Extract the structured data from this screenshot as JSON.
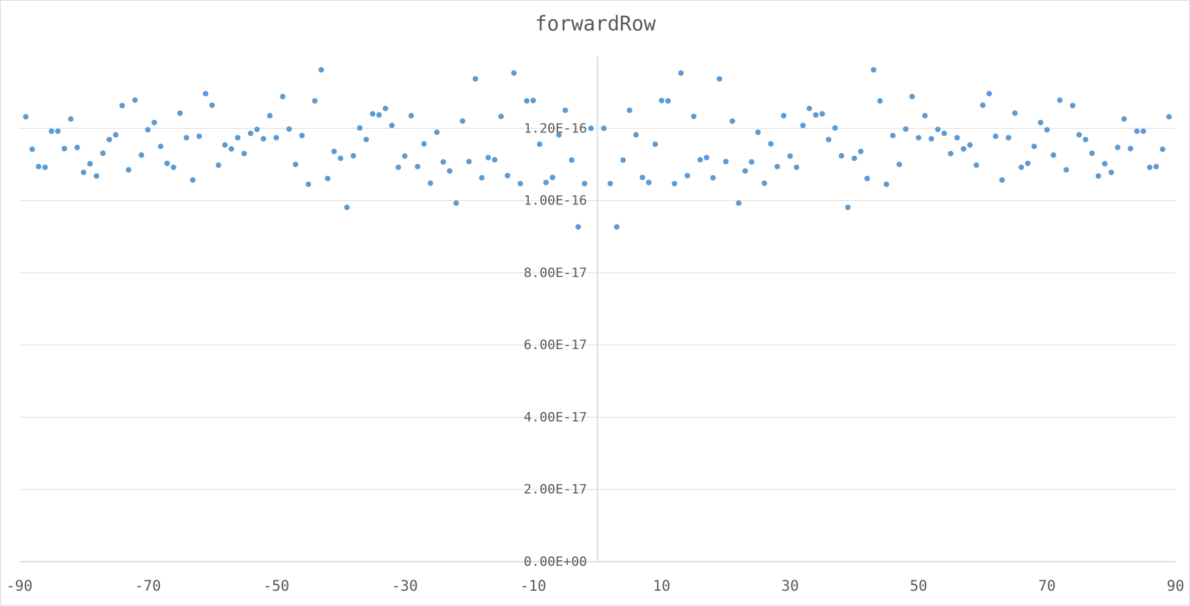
{
  "chart_data": {
    "type": "scatter",
    "title": "forwardRow",
    "xlabel": "",
    "ylabel": "",
    "xlim": [
      -90,
      90
    ],
    "ylim": [
      0,
      1.4e-16
    ],
    "x_ticks": [
      -90,
      -70,
      -50,
      -30,
      -10,
      10,
      30,
      50,
      70,
      90
    ],
    "x_tick_labels": [
      "-90",
      "-70",
      "-50",
      "-30",
      "-10",
      "10",
      "30",
      "50",
      "70",
      "90"
    ],
    "y_ticks": [
      0,
      2e-17,
      4e-17,
      6e-17,
      8e-17,
      1e-16,
      1.2e-16
    ],
    "y_tick_labels": [
      "0.00E+00",
      "2.00E-17",
      "4.00E-17",
      "6.00E-17",
      "8.00E-17",
      "1.00E-16",
      "1.20E-16"
    ],
    "y_axis_at_x": 0,
    "grid": "horizontal",
    "marker_color": "#5b9bd5",
    "series": [
      {
        "x": [
          -89,
          -88,
          -87,
          -86,
          -85,
          -84,
          -83,
          -82,
          -81,
          -80,
          -79,
          -78,
          -77,
          -76,
          -75,
          -74,
          -73,
          -72,
          -71,
          -70,
          -69,
          -68,
          -67,
          -66,
          -65,
          -64,
          -63,
          -62,
          -61,
          -60,
          -59,
          -58,
          -57,
          -56,
          -55,
          -54,
          -53,
          -52,
          -51,
          -50,
          -49,
          -48,
          -47,
          -46,
          -45,
          -44,
          -43,
          -42,
          -41,
          -40,
          -39,
          -38,
          -37,
          -36,
          -35,
          -34,
          -33,
          -32,
          -31,
          -30,
          -29,
          -28,
          -27,
          -26,
          -25,
          -24,
          -23,
          -22,
          -21,
          -20,
          -19,
          -18,
          -17,
          -16,
          -15,
          -14,
          -13,
          -12,
          -11,
          -10,
          -9,
          -8,
          -7,
          -6,
          -5,
          -4,
          -3,
          -2,
          -1,
          1,
          2,
          3,
          4,
          5,
          6,
          7,
          8,
          9,
          10,
          11,
          12,
          13,
          14,
          15,
          16,
          17,
          18,
          19,
          20,
          21,
          22,
          23,
          24,
          25,
          26,
          27,
          28,
          29,
          30,
          31,
          32,
          33,
          34,
          35,
          36,
          37,
          38,
          39,
          40,
          41,
          42,
          43,
          44,
          45,
          46,
          47,
          48,
          49,
          50,
          51,
          52,
          53,
          54,
          55,
          56,
          57,
          58,
          59,
          60,
          61,
          62,
          63,
          64,
          65,
          66,
          67,
          68,
          69,
          70,
          71,
          72,
          73,
          74,
          75,
          76,
          77,
          78,
          79,
          80,
          81,
          82,
          83,
          84,
          85,
          86,
          87,
          88,
          89
        ],
        "y": [
          1.232e-16,
          1.142e-16,
          1.094e-16,
          1.092e-16,
          1.192e-16,
          1.192e-16,
          1.144e-16,
          1.226e-16,
          1.147e-16,
          1.078e-16,
          1.102e-16,
          1.068e-16,
          1.131e-16,
          1.169e-16,
          1.182e-16,
          1.263e-16,
          1.085e-16,
          1.278e-16,
          1.126e-16,
          1.196e-16,
          1.216e-16,
          1.15e-16,
          1.103e-16,
          1.092e-16,
          1.242e-16,
          1.174e-16,
          1.057e-16,
          1.178e-16,
          1.296e-16,
          1.264e-16,
          1.098e-16,
          1.154e-16,
          1.143e-16,
          1.174e-16,
          1.13e-16,
          1.186e-16,
          1.197e-16,
          1.171e-16,
          1.235e-16,
          1.174e-16,
          1.288e-16,
          1.198e-16,
          1.1e-16,
          1.18e-16,
          1.045e-16,
          1.276e-16,
          1.362e-16,
          1.061e-16,
          1.136e-16,
          1.117e-16,
          9.81e-17,
          1.124e-16,
          1.201e-16,
          1.169e-16,
          1.24e-16,
          1.237e-16,
          1.255e-16,
          1.208e-16,
          1.092e-16,
          1.123e-16,
          1.235e-16,
          1.094e-16,
          1.157e-16,
          1.048e-16,
          1.189e-16,
          1.107e-16,
          1.082e-16,
          9.93e-17,
          1.22e-16,
          1.108e-16,
          1.337e-16,
          1.063e-16,
          1.119e-16,
          1.113e-16,
          1.233e-16,
          1.069e-16,
          1.353e-16,
          1.047e-16,
          1.276e-16,
          1.277e-16,
          1.156e-16,
          1.05e-16,
          1.064e-16,
          1.182e-16,
          1.25e-16,
          1.112e-16,
          9.27e-17,
          1.047e-16,
          1.2e-16,
          1.2e-16,
          1.047e-16,
          9.27e-17,
          1.112e-16,
          1.25e-16,
          1.182e-16,
          1.064e-16,
          1.05e-16,
          1.156e-16,
          1.277e-16,
          1.276e-16,
          1.047e-16,
          1.353e-16,
          1.069e-16,
          1.233e-16,
          1.113e-16,
          1.119e-16,
          1.063e-16,
          1.337e-16,
          1.108e-16,
          1.22e-16,
          9.93e-17,
          1.082e-16,
          1.107e-16,
          1.189e-16,
          1.048e-16,
          1.157e-16,
          1.094e-16,
          1.235e-16,
          1.123e-16,
          1.092e-16,
          1.208e-16,
          1.255e-16,
          1.237e-16,
          1.24e-16,
          1.169e-16,
          1.201e-16,
          1.124e-16,
          9.81e-17,
          1.117e-16,
          1.136e-16,
          1.061e-16,
          1.362e-16,
          1.276e-16,
          1.045e-16,
          1.18e-16,
          1.1e-16,
          1.198e-16,
          1.288e-16,
          1.174e-16,
          1.235e-16,
          1.171e-16,
          1.197e-16,
          1.186e-16,
          1.13e-16,
          1.174e-16,
          1.143e-16,
          1.154e-16,
          1.098e-16,
          1.264e-16,
          1.296e-16,
          1.178e-16,
          1.057e-16,
          1.174e-16,
          1.242e-16,
          1.092e-16,
          1.103e-16,
          1.15e-16,
          1.216e-16,
          1.196e-16,
          1.126e-16,
          1.278e-16,
          1.085e-16,
          1.263e-16,
          1.182e-16,
          1.169e-16,
          1.131e-16,
          1.068e-16,
          1.102e-16,
          1.078e-16,
          1.147e-16,
          1.226e-16,
          1.144e-16,
          1.192e-16,
          1.192e-16,
          1.092e-16,
          1.094e-16,
          1.142e-16,
          1.232e-16
        ]
      }
    ]
  }
}
